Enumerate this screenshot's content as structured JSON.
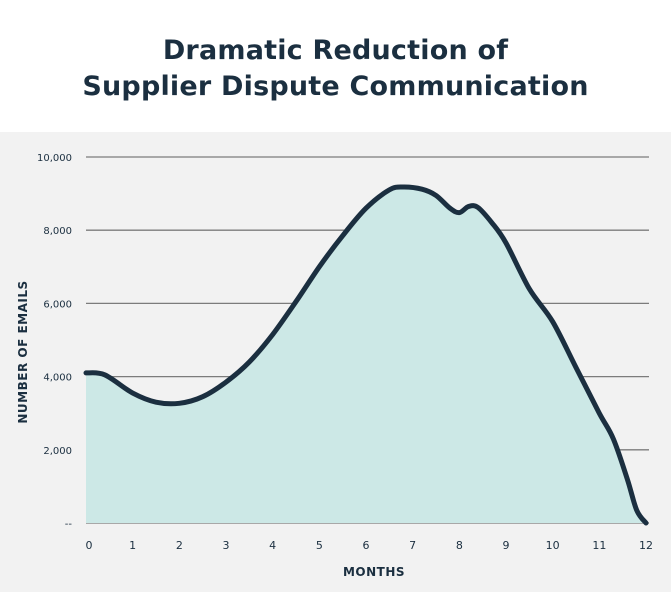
{
  "chart_data": {
    "type": "area",
    "title_lines": [
      "Dramatic Reduction of",
      "Supplier Dispute Communication"
    ],
    "xlabel": "MONTHS",
    "ylabel": "NUMBER OF EMAILS",
    "x_ticks": [
      "0",
      "1",
      "2",
      "3",
      "4",
      "5",
      "6",
      "7",
      "8",
      "9",
      "10",
      "11",
      "12"
    ],
    "y_ticks": [
      {
        "value": 0,
        "label": "--"
      },
      {
        "value": 2000,
        "label": "2,000"
      },
      {
        "value": 4000,
        "label": "4,000"
      },
      {
        "value": 6000,
        "label": "6,000"
      },
      {
        "value": 8000,
        "label": "8,000"
      },
      {
        "value": 10000,
        "label": "10,000"
      }
    ],
    "xlim": [
      0,
      12
    ],
    "ylim": [
      0,
      10000
    ],
    "grid": true,
    "series": [
      {
        "x": [
          0,
          0.4,
          1,
          1.5,
          2,
          2.5,
          3,
          3.5,
          4,
          4.5,
          5,
          5.5,
          6,
          6.5,
          6.8,
          7.2,
          7.5,
          7.8,
          8,
          8.2,
          8.4,
          8.7,
          9,
          9.5,
          10,
          10.5,
          11,
          11.3,
          11.6,
          11.8,
          12
        ],
        "y": [
          4100,
          4050,
          3550,
          3300,
          3270,
          3450,
          3850,
          4400,
          5150,
          6050,
          7000,
          7850,
          8600,
          9100,
          9180,
          9120,
          8950,
          8600,
          8480,
          8650,
          8620,
          8200,
          7650,
          6400,
          5500,
          4250,
          3000,
          2300,
          1200,
          350,
          0
        ]
      }
    ],
    "colors": {
      "fill": "#cce8e6",
      "line": "#1b2f40",
      "grid": "#7c7c7c",
      "panel": "#f2f2f2",
      "text": "#1b2f40"
    }
  }
}
